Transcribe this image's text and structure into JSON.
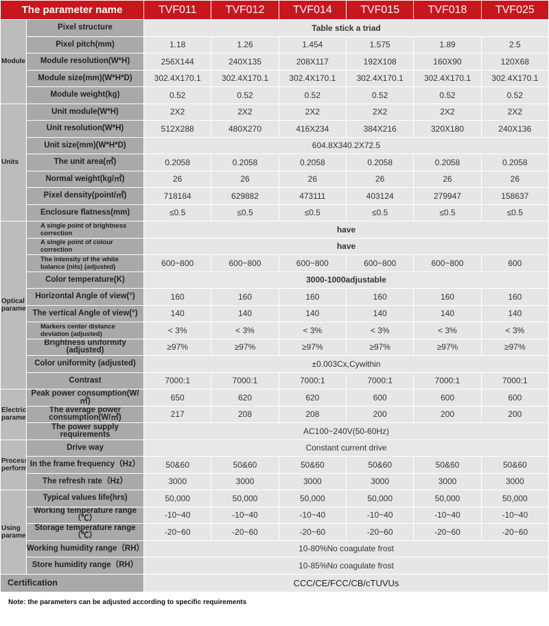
{
  "header": {
    "param_label": "The parameter name",
    "models": [
      "TVF011",
      "TVF012",
      "TVF014",
      "TVF015",
      "TVF018",
      "TVF025"
    ]
  },
  "colors": {
    "header": "#c8161d",
    "group_bg": "#bcbcbc",
    "label_bg": "#a9a9a9",
    "cell_bg": "#e6e6e6"
  },
  "groups": [
    {
      "name": "Module",
      "rows": [
        {
          "label": "Pixel structure",
          "merged": "Table stick a triad",
          "bold": true
        },
        {
          "label": "Pixel pitch(mm)",
          "values": [
            "1.18",
            "1.26",
            "1.454",
            "1.575",
            "1.89",
            "2.5"
          ]
        },
        {
          "label": "Module resolution(W*H)",
          "values": [
            "256X144",
            "240X135",
            "208X117",
            "192X108",
            "160X90",
            "120X68"
          ]
        },
        {
          "label": "Module size(mm)(W*H*D)",
          "values": [
            "302.4X170.1",
            "302.4X170.1",
            "302.4X170.1",
            "302.4X170.1",
            "302.4X170.1",
            "302.4X170.1"
          ]
        },
        {
          "label": "Module weight(kg)",
          "values": [
            "0.52",
            "0.52",
            "0.52",
            "0.52",
            "0.52",
            "0.52"
          ]
        }
      ]
    },
    {
      "name": "Units",
      "rows": [
        {
          "label": "Unit module(W*H)",
          "values": [
            "2X2",
            "2X2",
            "2X2",
            "2X2",
            "2X2",
            "2X2"
          ]
        },
        {
          "label": "Unit resolution(W*H)",
          "values": [
            "512X288",
            "480X270",
            "416X234",
            "384X216",
            "320X180",
            "240X136"
          ]
        },
        {
          "label": "Unit size(mm)(W*H*D)",
          "merged": "604.8X340.2X72.5"
        },
        {
          "label": "The unit area(㎡)",
          "values": [
            "0.2058",
            "0.2058",
            "0.2058",
            "0.2058",
            "0.2058",
            "0.2058"
          ]
        },
        {
          "label": "Normal weight(kg/㎡)",
          "values": [
            "26",
            "26",
            "26",
            "26",
            "26",
            "26"
          ]
        },
        {
          "label": "Pixel density(point/㎡)",
          "values": [
            "718184",
            "629882",
            "473111",
            "403124",
            "279947",
            "158637"
          ]
        },
        {
          "label": "Enclosure flatness(mm)",
          "values": [
            "≤0.5",
            "≤0.5",
            "≤0.5",
            "≤0.5",
            "≤0.5",
            "≤0.5"
          ]
        }
      ]
    },
    {
      "name": "Optical parameters",
      "rows": [
        {
          "label": "A single point of brightness correction",
          "small": true,
          "merged": "have",
          "bold": true
        },
        {
          "label": "A single point of colour correction",
          "small": true,
          "merged": "have",
          "bold": true
        },
        {
          "label": "The intensity of the white balance (nits) (adjusted)",
          "small": true,
          "values": [
            "600~800",
            "600~800",
            "600~800",
            "600~800",
            "600~800",
            "600"
          ]
        },
        {
          "label": "Color temperature(K)",
          "merged": "3000-1000adjustable",
          "bold": true
        },
        {
          "label": "Horizontal Angle of view(°)",
          "values": [
            "160",
            "160",
            "160",
            "160",
            "160",
            "160"
          ]
        },
        {
          "label": "The vertical Angle of view(°)",
          "values": [
            "140",
            "140",
            "140",
            "140",
            "140",
            "140"
          ]
        },
        {
          "label": "Markers center distance deviation (adjusted)",
          "small": true,
          "values": [
            "< 3%",
            "< 3%",
            "< 3%",
            "< 3%",
            "< 3%",
            "< 3%"
          ]
        },
        {
          "label": "Brightness uniformity (adjusted)",
          "values": [
            "≥97%",
            "≥97%",
            "≥97%",
            "≥97%",
            "≥97%",
            "≥97%"
          ]
        },
        {
          "label": "Color uniformity (adjusted)",
          "merged": "±0.003Cx,Cywithin"
        },
        {
          "label": "Contrast",
          "values": [
            "7000:1",
            "7000:1",
            "7000:1",
            "7000:1",
            "7000:1",
            "7000:1"
          ]
        }
      ]
    },
    {
      "name": "Electrical parameters",
      "rows": [
        {
          "label": "Peak power consumption(W/㎡)",
          "values": [
            "650",
            "620",
            "620",
            "600",
            "600",
            "600"
          ]
        },
        {
          "label": "The average power consumption(W/㎡)",
          "values": [
            "217",
            "208",
            "208",
            "200",
            "200",
            "200"
          ]
        },
        {
          "label": "The power supply requirements",
          "merged": "AC100~240V(50-60Hz)"
        }
      ]
    },
    {
      "name": "Processing performance",
      "rows": [
        {
          "label": "Drive way",
          "merged": "Constant current drive"
        },
        {
          "label": "In the frame frequency（Hz）",
          "values": [
            "50&60",
            "50&60",
            "50&60",
            "50&60",
            "50&60",
            "50&60"
          ]
        },
        {
          "label": "The refresh rate（Hz）",
          "values": [
            "3000",
            "3000",
            "3000",
            "3000",
            "3000",
            "3000"
          ]
        }
      ]
    },
    {
      "name": "Using parameter",
      "rows": [
        {
          "label": "Typical values life(hrs)",
          "values": [
            "50,000",
            "50,000",
            "50,000",
            "50,000",
            "50,000",
            "50,000"
          ]
        },
        {
          "label": "Working temperature range（℃）",
          "values": [
            "-10~40",
            "-10~40",
            "-10~40",
            "-10~40",
            "-10~40",
            "-10~40"
          ]
        },
        {
          "label": "Storage temperature range（℃）",
          "values": [
            "-20~60",
            "-20~60",
            "-20~60",
            "-20~60",
            "-20~60",
            "-20~60"
          ]
        },
        {
          "label": "Working humidity range（RH）",
          "merged": "10-80%No coagulate frost"
        },
        {
          "label": "Store humidity range（RH）",
          "merged": "10-85%No coagulate frost"
        }
      ]
    }
  ],
  "certification": {
    "label": "Certification",
    "value": "CCC/CE/FCC/CB/cTUVUs"
  },
  "note": "Note: the parameters can be adjusted according to specific requirements"
}
